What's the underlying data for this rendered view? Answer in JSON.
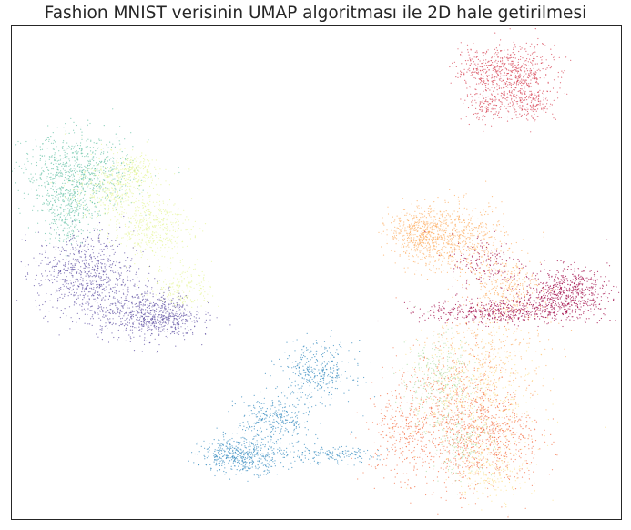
{
  "chart_data": {
    "type": "scatter",
    "title": "Fashion MNIST verisinin UMAP algoritması ile 2D hale getirilmesi",
    "xlabel": "",
    "ylabel": "",
    "ticks_shown": false,
    "grid": false,
    "legend": "none",
    "xlim": [
      0,
      100
    ],
    "ylim": [
      0,
      100
    ],
    "series": [
      {
        "color": "#d53e4f",
        "clusters": [
          {
            "x": 83,
            "y": 90,
            "sx": 3.0,
            "sy": 3.2,
            "n": 500
          },
          {
            "x": 77,
            "y": 91,
            "sx": 2.2,
            "sy": 2.0,
            "n": 200
          },
          {
            "x": 78,
            "y": 84,
            "sx": 1.8,
            "sy": 1.6,
            "n": 120
          },
          {
            "x": 85,
            "y": 84,
            "sx": 2.2,
            "sy": 1.6,
            "n": 140
          }
        ]
      },
      {
        "color": "#66c2a5",
        "clusters": [
          {
            "x": 11,
            "y": 70,
            "sx": 4.6,
            "sy": 4.0,
            "n": 800
          },
          {
            "x": 9,
            "y": 62,
            "sx": 2.0,
            "sy": 3.0,
            "n": 250
          }
        ]
      },
      {
        "color": "#e6f598",
        "clusters": [
          {
            "x": 17,
            "y": 67,
            "sx": 3.5,
            "sy": 3.5,
            "n": 400
          },
          {
            "x": 23,
            "y": 59,
            "sx": 3.2,
            "sy": 2.8,
            "n": 400
          },
          {
            "x": 28,
            "y": 47,
            "sx": 2.5,
            "sy": 2.2,
            "n": 200
          },
          {
            "x": 20,
            "y": 71,
            "sx": 1.6,
            "sy": 1.4,
            "n": 120
          }
        ]
      },
      {
        "color": "#5e4fa2",
        "clusters": [
          {
            "x": 12,
            "y": 50,
            "sx": 4.0,
            "sy": 4.2,
            "n": 700
          },
          {
            "x": 21,
            "y": 42,
            "sx": 4.5,
            "sy": 2.6,
            "n": 600
          },
          {
            "x": 26,
            "y": 40,
            "sx": 2.5,
            "sy": 1.8,
            "n": 200
          }
        ]
      },
      {
        "color": "#3288bd",
        "clusters": [
          {
            "x": 50,
            "y": 30,
            "sx": 3.0,
            "sy": 3.0,
            "n": 350
          },
          {
            "x": 43,
            "y": 20,
            "sx": 3.0,
            "sy": 2.5,
            "n": 300
          },
          {
            "x": 38,
            "y": 13,
            "sx": 3.5,
            "sy": 1.8,
            "n": 500
          },
          {
            "x": 52,
            "y": 13,
            "sx": 4.0,
            "sy": 0.8,
            "n": 150
          }
        ]
      },
      {
        "color": "#fdae61",
        "clusters": [
          {
            "x": 67,
            "y": 58,
            "sx": 2.5,
            "sy": 2.5,
            "n": 400
          },
          {
            "x": 73,
            "y": 57,
            "sx": 4.0,
            "sy": 3.5,
            "n": 600
          },
          {
            "x": 81,
            "y": 47,
            "sx": 3.0,
            "sy": 3.0,
            "n": 300
          },
          {
            "x": 78,
            "y": 33,
            "sx": 5.0,
            "sy": 6.0,
            "n": 300
          }
        ]
      },
      {
        "color": "#9e0142",
        "clusters": [
          {
            "x": 91,
            "y": 46,
            "sx": 3.5,
            "sy": 2.5,
            "n": 600
          },
          {
            "x": 80,
            "y": 42,
            "sx": 6.0,
            "sy": 1.2,
            "n": 500
          },
          {
            "x": 78,
            "y": 52,
            "sx": 3.0,
            "sy": 3.0,
            "n": 150
          }
        ]
      },
      {
        "color": "#f46d43",
        "clusters": [
          {
            "x": 73,
            "y": 20,
            "sx": 5.0,
            "sy": 7.0,
            "n": 700
          },
          {
            "x": 79,
            "y": 16,
            "sx": 4.0,
            "sy": 5.0,
            "n": 400
          },
          {
            "x": 64,
            "y": 18,
            "sx": 3.0,
            "sy": 5.0,
            "n": 250
          }
        ]
      },
      {
        "color": "#fee08b",
        "clusters": [
          {
            "x": 76,
            "y": 25,
            "sx": 5.0,
            "sy": 7.0,
            "n": 500
          },
          {
            "x": 79,
            "y": 10,
            "sx": 3.0,
            "sy": 3.0,
            "n": 200
          }
        ]
      },
      {
        "color": "#abdda4",
        "clusters": [
          {
            "x": 70,
            "y": 28,
            "sx": 3.0,
            "sy": 5.0,
            "n": 300
          },
          {
            "x": 74,
            "y": 15,
            "sx": 2.5,
            "sy": 3.0,
            "n": 150
          }
        ]
      }
    ]
  },
  "colors": {
    "title": "#262626",
    "frame": "#262626",
    "background": "#ffffff"
  }
}
